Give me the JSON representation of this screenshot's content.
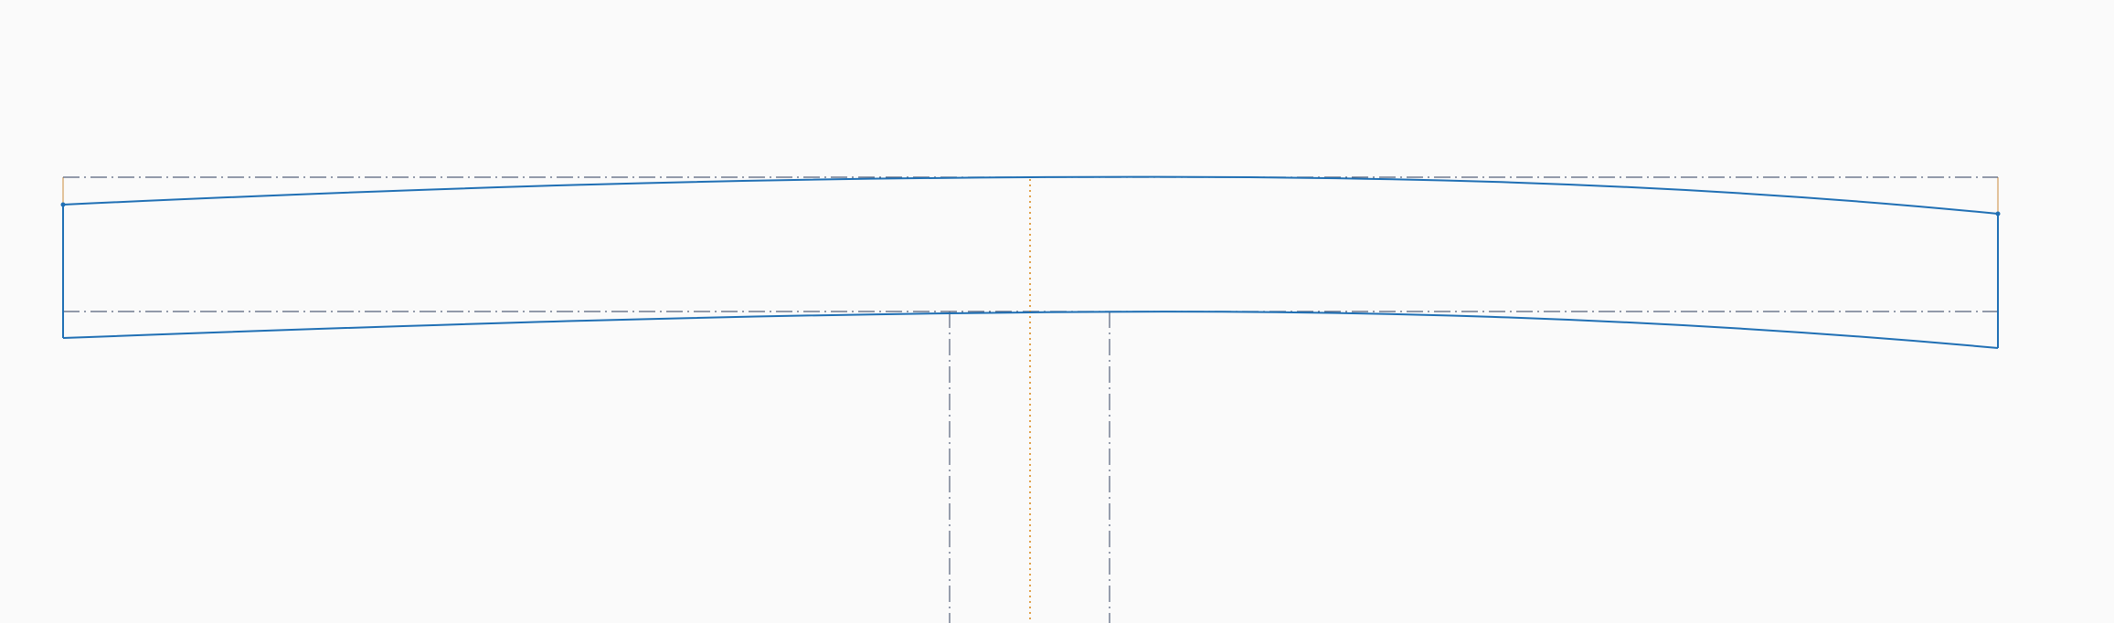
{
  "view": {
    "background": "#fafafa"
  },
  "colors": {
    "geometry": "#1f6fb4",
    "centerline": "#55607a",
    "symmetry_axis": "#d98a1c",
    "reference_box": "#c98a3a"
  },
  "line_styles": {
    "geometry": "solid",
    "centerline": "dash-dot",
    "symmetry_axis": "dotted",
    "reference_box": "solid"
  }
}
